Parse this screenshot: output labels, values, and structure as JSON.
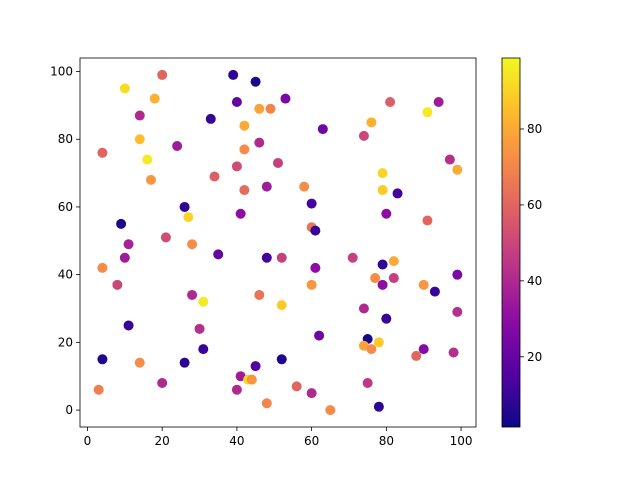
{
  "chart_data": {
    "type": "scatter",
    "title": "",
    "xlabel": "",
    "ylabel": "",
    "xlim": [
      -2,
      104
    ],
    "ylim": [
      -5,
      104
    ],
    "xticks": [
      0,
      20,
      40,
      60,
      80,
      100
    ],
    "yticks": [
      0,
      20,
      40,
      60,
      80,
      100
    ],
    "grid": false,
    "colormap": "plasma",
    "colorbar": {
      "range": [
        1.5,
        98.7
      ],
      "ticks": [
        20,
        40,
        60,
        80
      ]
    },
    "points": [
      {
        "x": 20,
        "y": 99,
        "c": 60
      },
      {
        "x": 39,
        "y": 99,
        "c": 8
      },
      {
        "x": 45,
        "y": 97,
        "c": 5
      },
      {
        "x": 10,
        "y": 95,
        "c": 92
      },
      {
        "x": 18,
        "y": 92,
        "c": 82
      },
      {
        "x": 40,
        "y": 91,
        "c": 20
      },
      {
        "x": 46,
        "y": 89,
        "c": 78
      },
      {
        "x": 49,
        "y": 89,
        "c": 70
      },
      {
        "x": 53,
        "y": 92,
        "c": 25
      },
      {
        "x": 81,
        "y": 91,
        "c": 58
      },
      {
        "x": 94,
        "y": 91,
        "c": 35
      },
      {
        "x": 91,
        "y": 88,
        "c": 95
      },
      {
        "x": 14,
        "y": 87,
        "c": 40
      },
      {
        "x": 33,
        "y": 86,
        "c": 10
      },
      {
        "x": 42,
        "y": 84,
        "c": 80
      },
      {
        "x": 76,
        "y": 85,
        "c": 82
      },
      {
        "x": 63,
        "y": 83,
        "c": 22
      },
      {
        "x": 14,
        "y": 80,
        "c": 85
      },
      {
        "x": 74,
        "y": 81,
        "c": 50
      },
      {
        "x": 24,
        "y": 78,
        "c": 35
      },
      {
        "x": 46,
        "y": 79,
        "c": 40
      },
      {
        "x": 42,
        "y": 77,
        "c": 72
      },
      {
        "x": 4,
        "y": 76,
        "c": 60
      },
      {
        "x": 16,
        "y": 74,
        "c": 95
      },
      {
        "x": 51,
        "y": 73,
        "c": 48
      },
      {
        "x": 40,
        "y": 72,
        "c": 52
      },
      {
        "x": 97,
        "y": 74,
        "c": 42
      },
      {
        "x": 79,
        "y": 70,
        "c": 90
      },
      {
        "x": 99,
        "y": 71,
        "c": 80
      },
      {
        "x": 34,
        "y": 69,
        "c": 58
      },
      {
        "x": 17,
        "y": 68,
        "c": 75
      },
      {
        "x": 48,
        "y": 66,
        "c": 35
      },
      {
        "x": 58,
        "y": 66,
        "c": 72
      },
      {
        "x": 42,
        "y": 65,
        "c": 62
      },
      {
        "x": 79,
        "y": 65,
        "c": 88
      },
      {
        "x": 83,
        "y": 64,
        "c": 12
      },
      {
        "x": 60,
        "y": 61,
        "c": 12
      },
      {
        "x": 26,
        "y": 60,
        "c": 8
      },
      {
        "x": 41,
        "y": 58,
        "c": 30
      },
      {
        "x": 80,
        "y": 58,
        "c": 30
      },
      {
        "x": 27,
        "y": 57,
        "c": 90
      },
      {
        "x": 91,
        "y": 56,
        "c": 60
      },
      {
        "x": 9,
        "y": 55,
        "c": 5
      },
      {
        "x": 60,
        "y": 54,
        "c": 65
      },
      {
        "x": 61,
        "y": 53,
        "c": 10
      },
      {
        "x": 21,
        "y": 51,
        "c": 52
      },
      {
        "x": 11,
        "y": 49,
        "c": 38
      },
      {
        "x": 28,
        "y": 49,
        "c": 72
      },
      {
        "x": 35,
        "y": 46,
        "c": 20
      },
      {
        "x": 10,
        "y": 45,
        "c": 35
      },
      {
        "x": 48,
        "y": 45,
        "c": 12
      },
      {
        "x": 52,
        "y": 45,
        "c": 48
      },
      {
        "x": 71,
        "y": 45,
        "c": 48
      },
      {
        "x": 79,
        "y": 43,
        "c": 8
      },
      {
        "x": 82,
        "y": 44,
        "c": 80
      },
      {
        "x": 61,
        "y": 42,
        "c": 30
      },
      {
        "x": 4,
        "y": 42,
        "c": 72
      },
      {
        "x": 77,
        "y": 39,
        "c": 72
      },
      {
        "x": 82,
        "y": 39,
        "c": 48
      },
      {
        "x": 99,
        "y": 40,
        "c": 25
      },
      {
        "x": 8,
        "y": 37,
        "c": 50
      },
      {
        "x": 60,
        "y": 37,
        "c": 75
      },
      {
        "x": 79,
        "y": 37,
        "c": 30
      },
      {
        "x": 90,
        "y": 37,
        "c": 75
      },
      {
        "x": 93,
        "y": 35,
        "c": 10
      },
      {
        "x": 28,
        "y": 34,
        "c": 40
      },
      {
        "x": 46,
        "y": 34,
        "c": 65
      },
      {
        "x": 31,
        "y": 32,
        "c": 95
      },
      {
        "x": 52,
        "y": 31,
        "c": 88
      },
      {
        "x": 74,
        "y": 30,
        "c": 40
      },
      {
        "x": 99,
        "y": 29,
        "c": 42
      },
      {
        "x": 80,
        "y": 27,
        "c": 10
      },
      {
        "x": 11,
        "y": 25,
        "c": 10
      },
      {
        "x": 30,
        "y": 24,
        "c": 42
      },
      {
        "x": 62,
        "y": 22,
        "c": 22
      },
      {
        "x": 75,
        "y": 21,
        "c": 3
      },
      {
        "x": 78,
        "y": 20,
        "c": 88
      },
      {
        "x": 74,
        "y": 19,
        "c": 78
      },
      {
        "x": 76,
        "y": 18,
        "c": 72
      },
      {
        "x": 31,
        "y": 18,
        "c": 10
      },
      {
        "x": 90,
        "y": 18,
        "c": 28
      },
      {
        "x": 98,
        "y": 17,
        "c": 42
      },
      {
        "x": 88,
        "y": 16,
        "c": 60
      },
      {
        "x": 4,
        "y": 15,
        "c": 5
      },
      {
        "x": 52,
        "y": 15,
        "c": 5
      },
      {
        "x": 26,
        "y": 14,
        "c": 8
      },
      {
        "x": 14,
        "y": 14,
        "c": 72
      },
      {
        "x": 45,
        "y": 13,
        "c": 15
      },
      {
        "x": 41,
        "y": 10,
        "c": 35
      },
      {
        "x": 43,
        "y": 9,
        "c": 90
      },
      {
        "x": 44,
        "y": 9,
        "c": 75
      },
      {
        "x": 75,
        "y": 8,
        "c": 45
      },
      {
        "x": 20,
        "y": 8,
        "c": 40
      },
      {
        "x": 56,
        "y": 7,
        "c": 60
      },
      {
        "x": 40,
        "y": 6,
        "c": 40
      },
      {
        "x": 3,
        "y": 6,
        "c": 68
      },
      {
        "x": 60,
        "y": 5,
        "c": 40
      },
      {
        "x": 48,
        "y": 2,
        "c": 70
      },
      {
        "x": 78,
        "y": 1,
        "c": 8
      },
      {
        "x": 65,
        "y": 0,
        "c": 72
      }
    ]
  }
}
